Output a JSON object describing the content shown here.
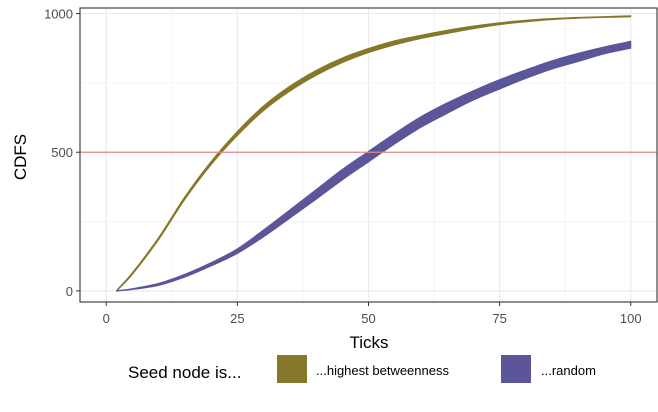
{
  "chart_data": {
    "type": "area",
    "xlabel": "Ticks",
    "ylabel": "CDFS",
    "xlim": [
      -5,
      105
    ],
    "ylim": [
      -40,
      1020
    ],
    "x_ticks": [
      0,
      25,
      50,
      75,
      100
    ],
    "y_ticks": [
      0,
      500,
      1000
    ],
    "grid": true,
    "reference_line": {
      "y": 500,
      "color": "#e08a84"
    },
    "legend": {
      "position": "bottom",
      "title": "Seed node is...",
      "entries": [
        "...highest betweenness",
        "...random"
      ]
    },
    "x": [
      2,
      5,
      10,
      15,
      20,
      25,
      30,
      35,
      40,
      45,
      50,
      55,
      60,
      65,
      70,
      75,
      80,
      85,
      90,
      95,
      100
    ],
    "series": [
      {
        "name": "...highest betweenness",
        "color": "#85782a",
        "lower": [
          0,
          60,
          185,
          330,
          455,
          560,
          650,
          720,
          777,
          823,
          859,
          887,
          910,
          928,
          945,
          960,
          970,
          978,
          983,
          986,
          988
        ],
        "upper": [
          3,
          66,
          193,
          340,
          467,
          575,
          667,
          738,
          795,
          840,
          874,
          902,
          922,
          940,
          955,
          967,
          976,
          982,
          986,
          989,
          992
        ]
      },
      {
        "name": "...random",
        "color": "#5b559a",
        "lower": [
          0,
          5,
          20,
          50,
          90,
          135,
          195,
          262,
          330,
          400,
          465,
          530,
          590,
          640,
          688,
          728,
          766,
          800,
          827,
          855,
          875
        ],
        "upper": [
          1,
          8,
          27,
          60,
          102,
          152,
          220,
          292,
          365,
          438,
          503,
          568,
          628,
          678,
          722,
          762,
          797,
          830,
          857,
          880,
          900
        ]
      }
    ]
  }
}
